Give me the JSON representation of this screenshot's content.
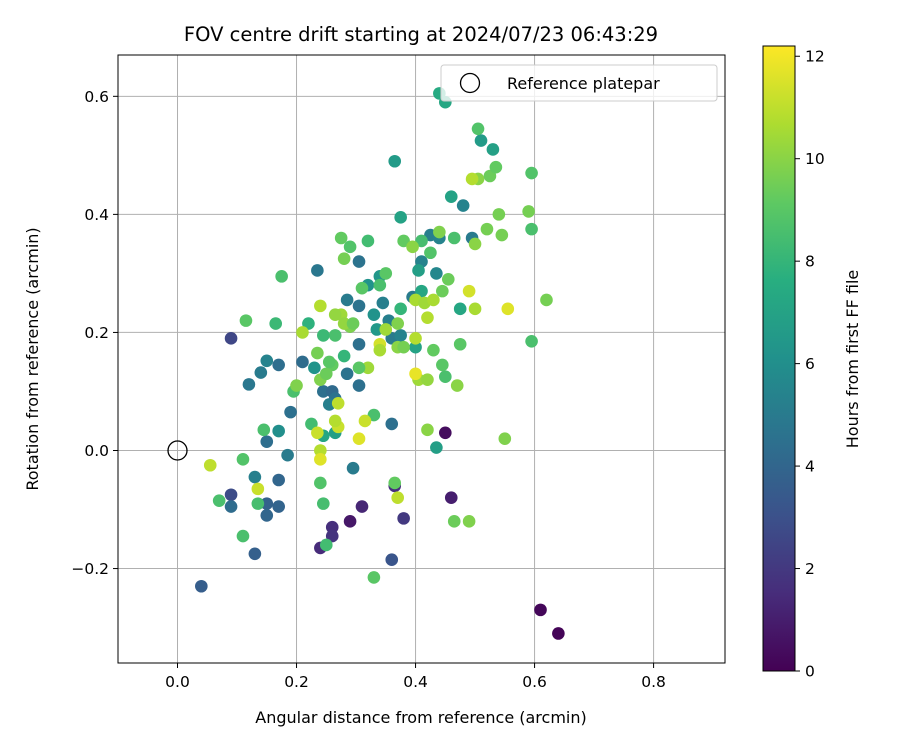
{
  "chart_data": {
    "type": "scatter",
    "title": "FOV centre drift starting at 2024/07/23 06:43:29",
    "xlabel": "Angular distance from reference (arcmin)",
    "ylabel": "Rotation from reference (arcmin)",
    "xlim": [
      -0.1,
      0.92
    ],
    "ylim": [
      -0.36,
      0.67
    ],
    "x_ticks": [
      0.0,
      0.2,
      0.4,
      0.6,
      0.8
    ],
    "x_tick_labels": [
      "0.0",
      "0.2",
      "0.4",
      "0.6",
      "0.8"
    ],
    "y_ticks": [
      -0.2,
      0.0,
      0.2,
      0.4,
      0.6
    ],
    "y_tick_labels": [
      "−0.2",
      "0.0",
      "0.2",
      "0.4",
      "0.6"
    ],
    "grid": true,
    "legend": {
      "position": "top-right",
      "entries": [
        "Reference platepar"
      ]
    },
    "reference_point": {
      "x": 0.0,
      "y": 0.0,
      "label": "Reference platepar"
    },
    "colorbar": {
      "label": "Hours from first FF file",
      "range": [
        0,
        12.2
      ],
      "ticks": [
        0,
        2,
        4,
        6,
        8,
        10,
        12
      ],
      "tick_labels": [
        "0",
        "2",
        "4",
        "6",
        "8",
        "10",
        "12"
      ],
      "colormap": "viridis"
    },
    "points": [
      {
        "x": 0.61,
        "y": -0.27,
        "h": 0.2
      },
      {
        "x": 0.64,
        "y": -0.31,
        "h": 0.1
      },
      {
        "x": 0.45,
        "y": 0.03,
        "h": 0.4
      },
      {
        "x": 0.46,
        "y": -0.08,
        "h": 1.0
      },
      {
        "x": 0.29,
        "y": -0.12,
        "h": 0.8
      },
      {
        "x": 0.31,
        "y": -0.095,
        "h": 1.3
      },
      {
        "x": 0.24,
        "y": -0.165,
        "h": 1.5
      },
      {
        "x": 0.26,
        "y": -0.13,
        "h": 1.6
      },
      {
        "x": 0.26,
        "y": -0.145,
        "h": 1.8
      },
      {
        "x": 0.38,
        "y": -0.115,
        "h": 2.0
      },
      {
        "x": 0.365,
        "y": -0.06,
        "h": 1.6
      },
      {
        "x": 0.09,
        "y": 0.19,
        "h": 2.6
      },
      {
        "x": 0.09,
        "y": -0.075,
        "h": 2.8
      },
      {
        "x": 0.36,
        "y": -0.185,
        "h": 3.2
      },
      {
        "x": 0.04,
        "y": -0.23,
        "h": 3.6
      },
      {
        "x": 0.13,
        "y": -0.175,
        "h": 3.7
      },
      {
        "x": 0.15,
        "y": -0.09,
        "h": 3.8
      },
      {
        "x": 0.15,
        "y": -0.11,
        "h": 4.0
      },
      {
        "x": 0.17,
        "y": -0.095,
        "h": 3.9
      },
      {
        "x": 0.17,
        "y": -0.05,
        "h": 4.0
      },
      {
        "x": 0.09,
        "y": -0.095,
        "h": 4.3
      },
      {
        "x": 0.15,
        "y": 0.015,
        "h": 4.4
      },
      {
        "x": 0.13,
        "y": -0.045,
        "h": 5.2
      },
      {
        "x": 0.185,
        "y": -0.008,
        "h": 5.0
      },
      {
        "x": 0.19,
        "y": 0.065,
        "h": 4.5
      },
      {
        "x": 0.21,
        "y": 0.15,
        "h": 4.3
      },
      {
        "x": 0.17,
        "y": 0.145,
        "h": 4.4
      },
      {
        "x": 0.12,
        "y": 0.112,
        "h": 4.8
      },
      {
        "x": 0.14,
        "y": 0.132,
        "h": 5.0
      },
      {
        "x": 0.15,
        "y": 0.152,
        "h": 5.4
      },
      {
        "x": 0.235,
        "y": 0.305,
        "h": 4.8
      },
      {
        "x": 0.245,
        "y": 0.1,
        "h": 4.5
      },
      {
        "x": 0.26,
        "y": 0.1,
        "h": 4.2
      },
      {
        "x": 0.265,
        "y": 0.088,
        "h": 4.6
      },
      {
        "x": 0.255,
        "y": 0.078,
        "h": 5.2
      },
      {
        "x": 0.285,
        "y": 0.13,
        "h": 4.6
      },
      {
        "x": 0.305,
        "y": 0.11,
        "h": 4.5
      },
      {
        "x": 0.305,
        "y": 0.18,
        "h": 4.5
      },
      {
        "x": 0.305,
        "y": 0.245,
        "h": 4.6
      },
      {
        "x": 0.295,
        "y": -0.03,
        "h": 5.0
      },
      {
        "x": 0.305,
        "y": 0.32,
        "h": 4.6
      },
      {
        "x": 0.285,
        "y": 0.255,
        "h": 5.0
      },
      {
        "x": 0.345,
        "y": 0.25,
        "h": 5.2
      },
      {
        "x": 0.355,
        "y": 0.22,
        "h": 5.2
      },
      {
        "x": 0.36,
        "y": 0.19,
        "h": 5.0
      },
      {
        "x": 0.36,
        "y": 0.045,
        "h": 4.5
      },
      {
        "x": 0.395,
        "y": 0.26,
        "h": 5.0
      },
      {
        "x": 0.41,
        "y": 0.32,
        "h": 5.4
      },
      {
        "x": 0.425,
        "y": 0.365,
        "h": 5.2
      },
      {
        "x": 0.44,
        "y": 0.36,
        "h": 5.4
      },
      {
        "x": 0.48,
        "y": 0.415,
        "h": 5.4
      },
      {
        "x": 0.495,
        "y": 0.36,
        "h": 5.0
      },
      {
        "x": 0.435,
        "y": 0.3,
        "h": 5.6
      },
      {
        "x": 0.375,
        "y": 0.195,
        "h": 5.4
      },
      {
        "x": 0.17,
        "y": 0.033,
        "h": 6.0
      },
      {
        "x": 0.23,
        "y": 0.14,
        "h": 6.2
      },
      {
        "x": 0.245,
        "y": 0.025,
        "h": 7.2
      },
      {
        "x": 0.265,
        "y": 0.03,
        "h": 6.8
      },
      {
        "x": 0.29,
        "y": 0.21,
        "h": 6.0
      },
      {
        "x": 0.32,
        "y": 0.28,
        "h": 6.2
      },
      {
        "x": 0.34,
        "y": 0.295,
        "h": 6.4
      },
      {
        "x": 0.33,
        "y": 0.23,
        "h": 6.2
      },
      {
        "x": 0.335,
        "y": 0.205,
        "h": 6.5
      },
      {
        "x": 0.365,
        "y": 0.49,
        "h": 6.6
      },
      {
        "x": 0.375,
        "y": 0.395,
        "h": 7.0
      },
      {
        "x": 0.405,
        "y": 0.305,
        "h": 6.8
      },
      {
        "x": 0.41,
        "y": 0.27,
        "h": 7.2
      },
      {
        "x": 0.4,
        "y": 0.175,
        "h": 7.0
      },
      {
        "x": 0.44,
        "y": 0.605,
        "h": 7.4
      },
      {
        "x": 0.45,
        "y": 0.59,
        "h": 7.2
      },
      {
        "x": 0.46,
        "y": 0.43,
        "h": 7.0
      },
      {
        "x": 0.435,
        "y": 0.005,
        "h": 6.8
      },
      {
        "x": 0.475,
        "y": 0.24,
        "h": 7.2
      },
      {
        "x": 0.51,
        "y": 0.525,
        "h": 6.6
      },
      {
        "x": 0.53,
        "y": 0.51,
        "h": 6.9
      },
      {
        "x": 0.375,
        "y": 0.24,
        "h": 8.0
      },
      {
        "x": 0.28,
        "y": 0.16,
        "h": 8.0
      },
      {
        "x": 0.22,
        "y": 0.215,
        "h": 7.8
      },
      {
        "x": 0.265,
        "y": 0.195,
        "h": 8.6
      },
      {
        "x": 0.245,
        "y": 0.195,
        "h": 8.2
      },
      {
        "x": 0.245,
        "y": -0.09,
        "h": 8.5
      },
      {
        "x": 0.25,
        "y": -0.16,
        "h": 8.4
      },
      {
        "x": 0.24,
        "y": -0.055,
        "h": 8.8
      },
      {
        "x": 0.225,
        "y": 0.045,
        "h": 8.4
      },
      {
        "x": 0.195,
        "y": 0.1,
        "h": 8.6
      },
      {
        "x": 0.175,
        "y": 0.295,
        "h": 8.6
      },
      {
        "x": 0.165,
        "y": 0.215,
        "h": 8.2
      },
      {
        "x": 0.145,
        "y": 0.035,
        "h": 8.6
      },
      {
        "x": 0.135,
        "y": -0.09,
        "h": 8.5
      },
      {
        "x": 0.11,
        "y": -0.145,
        "h": 8.6
      },
      {
        "x": 0.07,
        "y": -0.085,
        "h": 8.6
      },
      {
        "x": 0.11,
        "y": -0.015,
        "h": 8.8
      },
      {
        "x": 0.115,
        "y": 0.22,
        "h": 9.0
      },
      {
        "x": 0.33,
        "y": 0.06,
        "h": 8.6
      },
      {
        "x": 0.33,
        "y": -0.215,
        "h": 9.0
      },
      {
        "x": 0.365,
        "y": -0.055,
        "h": 9.2
      },
      {
        "x": 0.275,
        "y": 0.36,
        "h": 9.2
      },
      {
        "x": 0.29,
        "y": 0.345,
        "h": 8.8
      },
      {
        "x": 0.31,
        "y": 0.275,
        "h": 9.0
      },
      {
        "x": 0.32,
        "y": 0.355,
        "h": 8.4
      },
      {
        "x": 0.34,
        "y": 0.28,
        "h": 8.6
      },
      {
        "x": 0.35,
        "y": 0.3,
        "h": 9.0
      },
      {
        "x": 0.38,
        "y": 0.355,
        "h": 9.2
      },
      {
        "x": 0.41,
        "y": 0.355,
        "h": 8.5
      },
      {
        "x": 0.425,
        "y": 0.335,
        "h": 8.8
      },
      {
        "x": 0.465,
        "y": 0.36,
        "h": 8.6
      },
      {
        "x": 0.445,
        "y": 0.27,
        "h": 9.4
      },
      {
        "x": 0.455,
        "y": 0.29,
        "h": 9.4
      },
      {
        "x": 0.43,
        "y": 0.17,
        "h": 9.2
      },
      {
        "x": 0.445,
        "y": 0.145,
        "h": 9.0
      },
      {
        "x": 0.45,
        "y": 0.125,
        "h": 8.6
      },
      {
        "x": 0.475,
        "y": 0.18,
        "h": 9.0
      },
      {
        "x": 0.505,
        "y": 0.545,
        "h": 8.8
      },
      {
        "x": 0.505,
        "y": 0.46,
        "h": 10.0
      },
      {
        "x": 0.52,
        "y": 0.375,
        "h": 9.6
      },
      {
        "x": 0.525,
        "y": 0.465,
        "h": 9.4
      },
      {
        "x": 0.535,
        "y": 0.48,
        "h": 9.2
      },
      {
        "x": 0.54,
        "y": 0.4,
        "h": 9.6
      },
      {
        "x": 0.545,
        "y": 0.365,
        "h": 9.6
      },
      {
        "x": 0.55,
        "y": 0.02,
        "h": 9.8
      },
      {
        "x": 0.59,
        "y": 0.405,
        "h": 9.6
      },
      {
        "x": 0.595,
        "y": 0.47,
        "h": 8.8
      },
      {
        "x": 0.595,
        "y": 0.375,
        "h": 8.6
      },
      {
        "x": 0.595,
        "y": 0.185,
        "h": 8.6
      },
      {
        "x": 0.62,
        "y": 0.255,
        "h": 9.6
      },
      {
        "x": 0.49,
        "y": -0.12,
        "h": 9.8
      },
      {
        "x": 0.465,
        "y": -0.12,
        "h": 9.4
      },
      {
        "x": 0.47,
        "y": 0.11,
        "h": 10.0
      },
      {
        "x": 0.42,
        "y": 0.035,
        "h": 10.0
      },
      {
        "x": 0.405,
        "y": 0.12,
        "h": 10.4
      },
      {
        "x": 0.42,
        "y": 0.12,
        "h": 10.2
      },
      {
        "x": 0.395,
        "y": 0.345,
        "h": 10.0
      },
      {
        "x": 0.4,
        "y": 0.255,
        "h": 10.6
      },
      {
        "x": 0.415,
        "y": 0.25,
        "h": 10.4
      },
      {
        "x": 0.43,
        "y": 0.255,
        "h": 10.6
      },
      {
        "x": 0.44,
        "y": 0.37,
        "h": 9.8
      },
      {
        "x": 0.5,
        "y": 0.24,
        "h": 10.6
      },
      {
        "x": 0.5,
        "y": 0.35,
        "h": 10.0
      },
      {
        "x": 0.495,
        "y": 0.46,
        "h": 10.8
      },
      {
        "x": 0.555,
        "y": 0.24,
        "h": 11.6
      },
      {
        "x": 0.49,
        "y": 0.27,
        "h": 11.4
      },
      {
        "x": 0.4,
        "y": 0.13,
        "h": 11.8
      },
      {
        "x": 0.4,
        "y": 0.19,
        "h": 10.8
      },
      {
        "x": 0.37,
        "y": 0.175,
        "h": 10.0
      },
      {
        "x": 0.34,
        "y": 0.18,
        "h": 11.4
      },
      {
        "x": 0.35,
        "y": 0.205,
        "h": 10.4
      },
      {
        "x": 0.34,
        "y": 0.17,
        "h": 10.6
      },
      {
        "x": 0.32,
        "y": 0.14,
        "h": 10.4
      },
      {
        "x": 0.315,
        "y": 0.05,
        "h": 11.2
      },
      {
        "x": 0.305,
        "y": 0.02,
        "h": 11.6
      },
      {
        "x": 0.27,
        "y": 0.08,
        "h": 11.0
      },
      {
        "x": 0.27,
        "y": 0.04,
        "h": 11.2
      },
      {
        "x": 0.265,
        "y": 0.05,
        "h": 10.8
      },
      {
        "x": 0.24,
        "y": 0.245,
        "h": 10.8
      },
      {
        "x": 0.275,
        "y": 0.23,
        "h": 10.4
      },
      {
        "x": 0.265,
        "y": 0.23,
        "h": 10.2
      },
      {
        "x": 0.235,
        "y": 0.165,
        "h": 9.6
      },
      {
        "x": 0.24,
        "y": 0.12,
        "h": 9.8
      },
      {
        "x": 0.235,
        "y": 0.03,
        "h": 11.2
      },
      {
        "x": 0.24,
        "y": 0.0,
        "h": 10.8
      },
      {
        "x": 0.24,
        "y": -0.015,
        "h": 11.6
      },
      {
        "x": 0.21,
        "y": 0.2,
        "h": 10.6
      },
      {
        "x": 0.2,
        "y": 0.11,
        "h": 9.8
      },
      {
        "x": 0.135,
        "y": -0.065,
        "h": 11.2
      },
      {
        "x": 0.055,
        "y": -0.025,
        "h": 11.0
      },
      {
        "x": 0.37,
        "y": -0.08,
        "h": 11.0
      },
      {
        "x": 0.38,
        "y": 0.175,
        "h": 9.6
      },
      {
        "x": 0.29,
        "y": 0.21,
        "h": 9.8
      },
      {
        "x": 0.28,
        "y": 0.215,
        "h": 10.2
      },
      {
        "x": 0.295,
        "y": 0.215,
        "h": 9.4
      },
      {
        "x": 0.305,
        "y": 0.14,
        "h": 9.0
      },
      {
        "x": 0.26,
        "y": 0.145,
        "h": 9.2
      },
      {
        "x": 0.25,
        "y": 0.13,
        "h": 9.4
      },
      {
        "x": 0.255,
        "y": 0.15,
        "h": 9.0
      },
      {
        "x": 0.28,
        "y": 0.325,
        "h": 9.6
      },
      {
        "x": 0.37,
        "y": 0.215,
        "h": 9.8
      },
      {
        "x": 0.42,
        "y": 0.225,
        "h": 10.8
      }
    ]
  }
}
